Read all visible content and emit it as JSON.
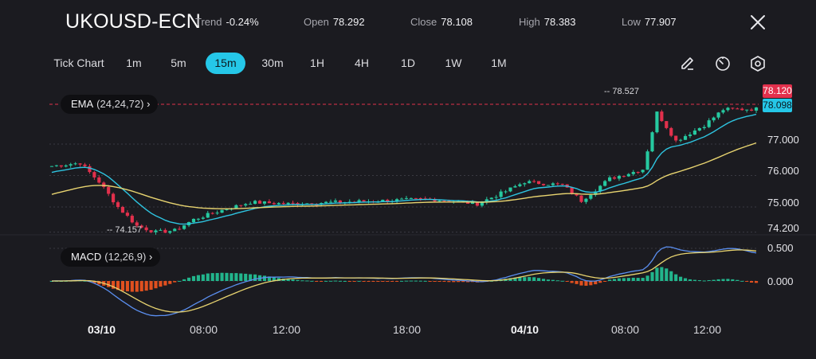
{
  "header": {
    "symbol": "UKOUSD-ECN",
    "trend_label": "Trend",
    "trend_value": "-0.24%",
    "open_label": "Open",
    "open_value": "78.292",
    "close_label": "Close",
    "close_value": "78.108",
    "high_label": "High",
    "high_value": "78.383",
    "low_label": "Low",
    "low_value": "77.907",
    "close_icon": "close-icon"
  },
  "timeframes": {
    "tick": "Tick Chart",
    "items": [
      "1m",
      "5m",
      "15m",
      "30m",
      "1H",
      "4H",
      "1D",
      "1W",
      "1M"
    ],
    "active": "15m"
  },
  "tools": [
    "pencil-icon",
    "timer-icon",
    "settings-hexagon-icon"
  ],
  "indicators": {
    "ema_name": "EMA",
    "ema_params": "(24,24,72)",
    "macd_name": "MACD",
    "macd_params": "(12,26,9)"
  },
  "price_axis": {
    "ticks": [
      "77.000",
      "76.000",
      "75.000",
      "74.200"
    ],
    "last_price": "78.120",
    "ema_price": "78.098"
  },
  "macd_axis": {
    "ticks": [
      "0.500",
      "0.000"
    ]
  },
  "annotations": {
    "high_marker": "78.527",
    "low_marker": "74.157"
  },
  "time_axis": {
    "labels": [
      "03/10",
      "08:00",
      "12:00",
      "18:00",
      "04/10",
      "08:00",
      "12:00"
    ]
  },
  "colors": {
    "up": "#26c9a0",
    "down": "#e2304c",
    "ema_fast": "#2ec4e0",
    "ema_slow": "#e8d470",
    "macd_line": "#5b8ff0",
    "signal_line": "#e8d470",
    "hist_pos": "#22b58c",
    "hist_neg": "#e0501f",
    "accent": "#25c7e8"
  },
  "chart_data": {
    "type": "candlestick",
    "y_range": [
      74.0,
      78.6
    ],
    "ohlc": [],
    "ema_fast_series": [],
    "ema_slow_series": [],
    "macd_range": [
      -0.55,
      0.65
    ]
  }
}
